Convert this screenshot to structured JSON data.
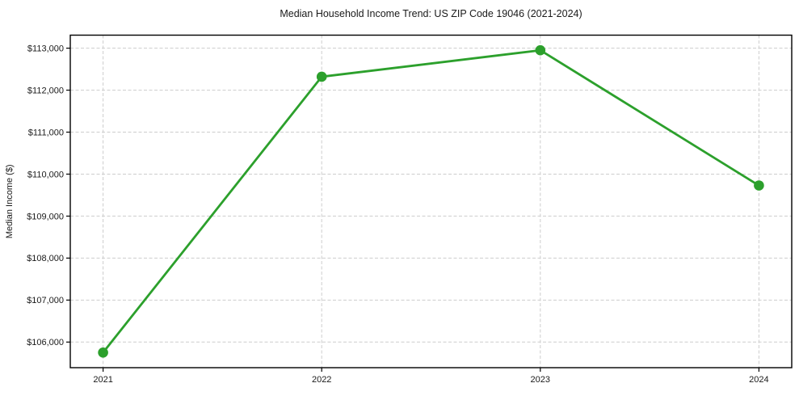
{
  "chart_data": {
    "type": "line",
    "title": "Median Household Income Trend: US ZIP Code 19046 (2021-2024)",
    "xlabel": "",
    "ylabel": "Median Income ($)",
    "x": [
      2021,
      2022,
      2023,
      2024
    ],
    "xtick_labels": [
      "2021",
      "2022",
      "2023",
      "2024"
    ],
    "series": [
      {
        "values": [
          105750,
          112320,
          112950,
          109730
        ]
      }
    ],
    "yticks": [
      106000,
      107000,
      108000,
      109000,
      110000,
      111000,
      112000,
      113000
    ],
    "ytick_labels": [
      "$106,000",
      "$107,000",
      "$108,000",
      "$109,000",
      "$110,000",
      "$111,000",
      "$112,000",
      "$113,000"
    ],
    "ylim": [
      105390,
      113310
    ],
    "xlim": [
      2020.85,
      2024.15
    ],
    "grid": true,
    "legend": "none",
    "marker": "circle",
    "colors": {
      "line": "#2ca02c",
      "marker": "#2ca02c",
      "grid": "#cdcdcd",
      "axis": "#000000",
      "text": "#1a1a1a",
      "background": "#ffffff"
    }
  }
}
